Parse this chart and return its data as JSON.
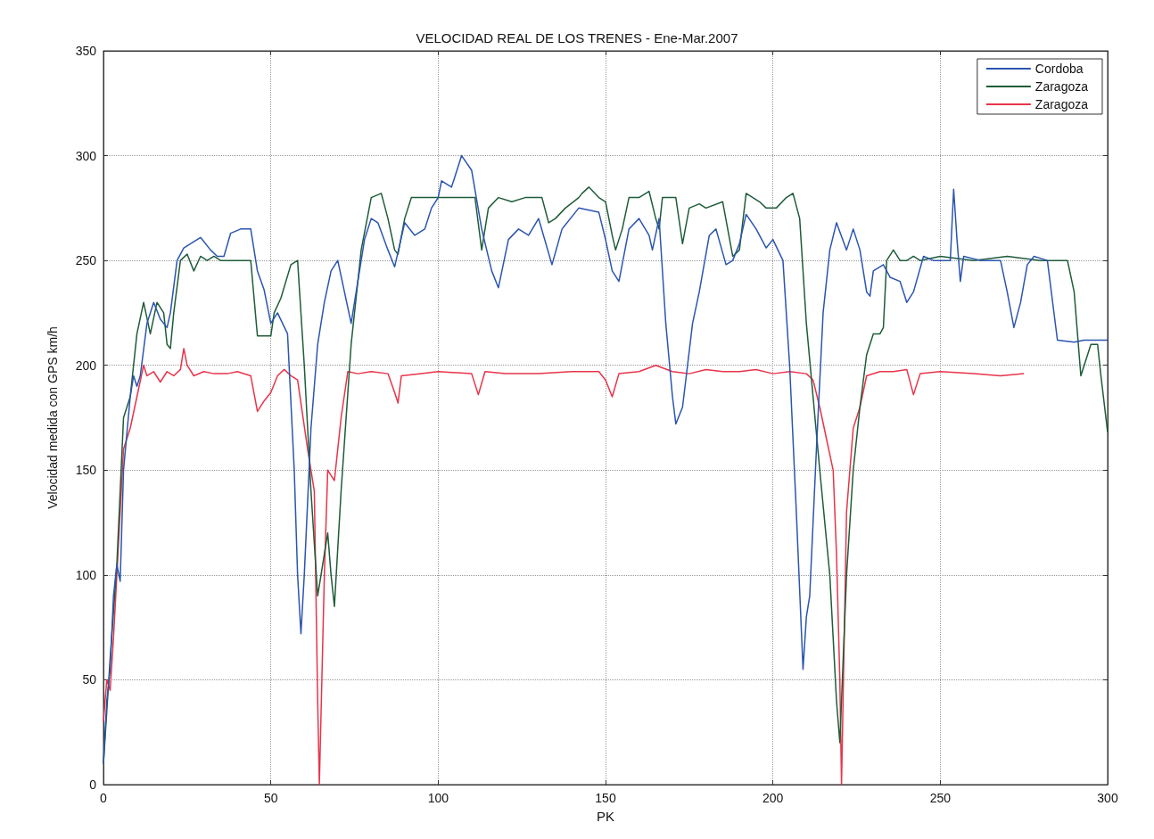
{
  "chart_data": {
    "type": "line",
    "title": "VELOCIDAD REAL DE LOS TRENES - Ene-Mar.2007",
    "xlabel": "PK",
    "ylabel": "Velocidad medida con GPS km/h",
    "xlim": [
      0,
      300
    ],
    "xticks": [
      0,
      50,
      100,
      150,
      200,
      250,
      300
    ],
    "ylim": [
      0,
      350
    ],
    "yticks": [
      0,
      50,
      100,
      150,
      200,
      250,
      300,
      350
    ],
    "grid": true,
    "legend": "top right",
    "marker": "none",
    "line_style": "solid",
    "series": [
      {
        "name": "Cordoba",
        "color": "#2b55b0",
        "x": [
          0,
          1,
          2,
          3,
          4,
          5,
          6,
          8,
          9,
          10,
          11,
          13,
          15,
          17,
          19,
          20,
          22,
          24,
          26,
          29,
          32,
          34,
          36,
          38,
          41,
          44,
          46,
          48,
          50,
          52,
          55,
          57,
          58,
          59,
          60,
          62,
          64,
          66,
          68,
          70,
          72,
          74,
          78,
          80,
          82,
          85,
          87,
          90,
          93,
          96,
          98,
          100,
          101,
          104,
          107,
          110,
          113,
          116,
          118,
          121,
          124,
          127,
          130,
          134,
          137,
          142,
          148,
          150,
          152,
          154,
          157,
          160,
          163,
          164,
          166,
          168,
          170,
          171,
          173,
          176,
          178,
          181,
          183,
          186,
          188,
          190,
          192,
          195,
          198,
          200,
          203,
          205,
          207,
          209,
          210,
          211,
          213,
          215,
          217,
          219,
          222,
          224,
          226,
          228,
          229,
          230,
          233,
          235,
          238,
          240,
          242,
          245,
          248,
          253,
          254,
          255,
          256,
          257,
          262,
          268,
          270,
          272,
          274,
          276,
          278,
          282,
          285,
          290,
          293,
          300
        ],
        "values": [
          10,
          40,
          55,
          90,
          105,
          97,
          150,
          185,
          195,
          190,
          195,
          220,
          230,
          222,
          218,
          225,
          250,
          256,
          258,
          261,
          255,
          252,
          252,
          263,
          265,
          265,
          245,
          236,
          220,
          225,
          215,
          150,
          100,
          72,
          100,
          170,
          210,
          230,
          245,
          250,
          235,
          220,
          260,
          270,
          268,
          255,
          247,
          268,
          262,
          265,
          275,
          280,
          288,
          285,
          300,
          293,
          265,
          245,
          237,
          260,
          265,
          262,
          270,
          248,
          265,
          275,
          273,
          260,
          245,
          240,
          265,
          270,
          262,
          255,
          270,
          220,
          185,
          172,
          180,
          220,
          235,
          262,
          265,
          248,
          250,
          258,
          272,
          265,
          256,
          260,
          250,
          200,
          130,
          55,
          80,
          90,
          160,
          225,
          255,
          268,
          255,
          265,
          255,
          235,
          233,
          245,
          248,
          242,
          240,
          230,
          235,
          252,
          250,
          250,
          284,
          260,
          240,
          252,
          250,
          250,
          235,
          218,
          230,
          248,
          252,
          250,
          212,
          211,
          212,
          212
        ]
      },
      {
        "name": "Zaragoza",
        "color": "#1f5c3a",
        "x": [
          0,
          2,
          4,
          6,
          8,
          10,
          12,
          14,
          16,
          18,
          19,
          20,
          21,
          23,
          25,
          27,
          29,
          31,
          33,
          35,
          40,
          44,
          46,
          50,
          51,
          53,
          56,
          58,
          60,
          62,
          64,
          66,
          67,
          68,
          69,
          71,
          74,
          77,
          80,
          83,
          85,
          87,
          88,
          90,
          92,
          97,
          100,
          106,
          111,
          113,
          115,
          118,
          122,
          126,
          131,
          133,
          135,
          138,
          142,
          143,
          145,
          148,
          150,
          152,
          153,
          155,
          157,
          160,
          163,
          165,
          166,
          167,
          171,
          173,
          175,
          178,
          180,
          185,
          188,
          190,
          192,
          196,
          198,
          201,
          204,
          206,
          208,
          210,
          214,
          217,
          219,
          220,
          222,
          224,
          226,
          228,
          230,
          232,
          233,
          234,
          236,
          238,
          240,
          242,
          244,
          250,
          260,
          270,
          280,
          288,
          290,
          292,
          295,
          297,
          298,
          300
        ],
        "values": [
          10,
          60,
          105,
          175,
          185,
          215,
          230,
          215,
          230,
          225,
          210,
          208,
          225,
          250,
          253,
          245,
          252,
          250,
          252,
          250,
          250,
          250,
          214,
          214,
          225,
          232,
          248,
          250,
          200,
          140,
          90,
          110,
          120,
          100,
          85,
          140,
          210,
          255,
          280,
          282,
          270,
          255,
          253,
          270,
          280,
          280,
          280,
          280,
          280,
          255,
          275,
          280,
          278,
          280,
          280,
          268,
          270,
          275,
          280,
          282,
          285,
          280,
          278,
          262,
          255,
          265,
          280,
          280,
          283,
          270,
          265,
          280,
          280,
          258,
          275,
          277,
          275,
          278,
          252,
          255,
          282,
          278,
          275,
          275,
          280,
          282,
          270,
          220,
          150,
          100,
          40,
          20,
          100,
          150,
          180,
          205,
          215,
          215,
          218,
          250,
          255,
          250,
          250,
          252,
          250,
          252,
          250,
          252,
          250,
          250,
          235,
          195,
          210,
          210,
          195,
          168
        ]
      },
      {
        "name": "Zaragoza",
        "color": "#e8344a",
        "x": [
          0,
          1,
          2,
          3,
          4,
          5,
          6,
          8,
          10,
          12,
          13,
          15,
          17,
          19,
          21,
          23,
          24,
          25,
          27,
          30,
          33,
          37,
          40,
          44,
          46,
          48,
          50,
          52,
          54,
          56,
          58,
          61,
          63,
          64,
          64.5,
          66,
          67,
          69,
          71,
          73,
          76,
          80,
          85,
          87,
          88,
          89,
          95,
          100,
          110,
          112,
          114,
          120,
          130,
          140,
          148,
          150,
          152,
          154,
          160,
          165,
          170,
          175,
          180,
          185,
          190,
          195,
          200,
          205,
          210,
          212,
          214,
          216,
          218,
          219,
          220,
          220.5,
          222,
          224,
          226,
          228,
          232,
          236,
          240,
          242,
          244,
          250,
          260,
          268,
          275
        ],
        "values": [
          30,
          50,
          45,
          70,
          100,
          130,
          160,
          170,
          185,
          200,
          195,
          197,
          192,
          197,
          195,
          198,
          208,
          200,
          195,
          197,
          196,
          196,
          197,
          195,
          178,
          183,
          187,
          195,
          198,
          195,
          193,
          160,
          140,
          40,
          0,
          100,
          150,
          145,
          175,
          197,
          196,
          197,
          196,
          187,
          182,
          195,
          196,
          197,
          196,
          186,
          197,
          196,
          196,
          197,
          197,
          193,
          185,
          196,
          197,
          200,
          197,
          196,
          198,
          197,
          197,
          198,
          196,
          197,
          196,
          193,
          180,
          165,
          150,
          110,
          50,
          0,
          130,
          170,
          180,
          195,
          197,
          197,
          198,
          186,
          196,
          197,
          196,
          195,
          196
        ]
      }
    ]
  }
}
